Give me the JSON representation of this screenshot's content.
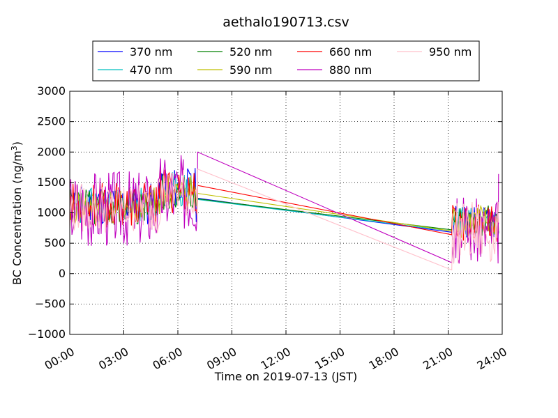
{
  "chart_data": {
    "type": "line",
    "title": "aethalo190713.csv",
    "xlabel": "Time on 2019-07-13 (JST)",
    "ylabel_main": "BC Concentration (ng/m",
    "ylabel_sup": "3",
    "ylabel_close": ")",
    "xlim": [
      0,
      24
    ],
    "ylim": [
      -1000,
      3000
    ],
    "x_tick_values": [
      0,
      3,
      6,
      9,
      12,
      15,
      18,
      21,
      24
    ],
    "x_tick_labels": [
      "00:00",
      "03:00",
      "06:00",
      "09:00",
      "12:00",
      "15:00",
      "18:00",
      "21:00",
      "24:00"
    ],
    "y_tick_values": [
      -1000,
      -500,
      0,
      500,
      1000,
      1500,
      2000,
      2500,
      3000
    ],
    "y_tick_labels": [
      "−1000",
      "−500",
      "0",
      "500",
      "1000",
      "1500",
      "2000",
      "2500",
      "3000"
    ],
    "grid": true,
    "legend_position": "top",
    "series": [
      {
        "name": "370 nm",
        "color": "#0000ff",
        "base": 1150,
        "amp": 350,
        "tail_amp": 300,
        "seed": 11,
        "points": [
          [
            7.1,
            1240
          ],
          [
            21.2,
            680
          ],
          [
            23.8,
            700
          ]
        ]
      },
      {
        "name": "470 nm",
        "color": "#00bfbf",
        "base": 1120,
        "amp": 300,
        "tail_amp": 260,
        "seed": 23,
        "points": [
          [
            7.1,
            1220
          ],
          [
            21.2,
            700
          ],
          [
            23.8,
            680
          ]
        ]
      },
      {
        "name": "520 nm",
        "color": "#008000",
        "base": 1100,
        "amp": 300,
        "tail_amp": 260,
        "seed": 37,
        "points": [
          [
            7.1,
            1230
          ],
          [
            21.2,
            720
          ],
          [
            23.8,
            660
          ]
        ]
      },
      {
        "name": "590 nm",
        "color": "#bfbf00",
        "base": 1100,
        "amp": 320,
        "tail_amp": 280,
        "seed": 41,
        "points": [
          [
            7.1,
            1320
          ],
          [
            21.2,
            700
          ],
          [
            23.8,
            700
          ]
        ]
      },
      {
        "name": "660 nm",
        "color": "#ff0000",
        "base": 1120,
        "amp": 380,
        "tail_amp": 320,
        "seed": 53,
        "points": [
          [
            7.1,
            1450
          ],
          [
            21.2,
            640
          ],
          [
            23.8,
            820
          ]
        ]
      },
      {
        "name": "880 nm",
        "color": "#bf00bf",
        "base": 1100,
        "amp": 650,
        "tail_amp": 550,
        "seed": 67,
        "points": [
          [
            7.1,
            2000
          ],
          [
            21.2,
            180
          ],
          [
            23.8,
            1640
          ]
        ]
      },
      {
        "name": "950 nm",
        "color": "#ffc0cb",
        "base": 1080,
        "amp": 420,
        "tail_amp": 520,
        "seed": 79,
        "points": [
          [
            7.1,
            1720
          ],
          [
            21.2,
            60
          ],
          [
            23.8,
            840
          ]
        ]
      }
    ]
  }
}
